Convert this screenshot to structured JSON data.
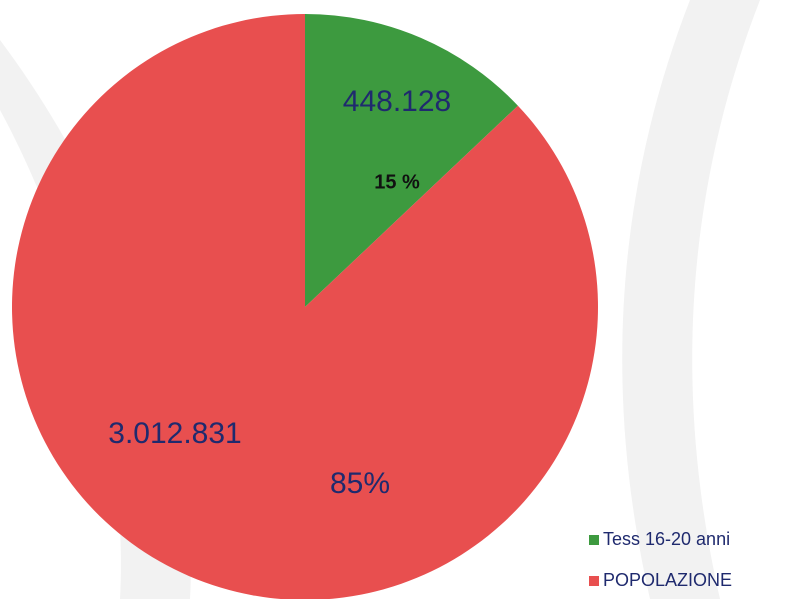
{
  "chart_data": {
    "type": "pie",
    "categories": [
      "Tess 16-20 anni",
      "POPOLAZIONE"
    ],
    "values": [
      448128,
      3012831
    ],
    "value_labels": [
      "448.128",
      "3.012.831"
    ],
    "percents": [
      15,
      85
    ],
    "percent_labels": [
      "15 %",
      "85%"
    ],
    "colors": [
      "#3d9a3f",
      "#e84f4f"
    ],
    "legend": "bottom-right"
  }
}
